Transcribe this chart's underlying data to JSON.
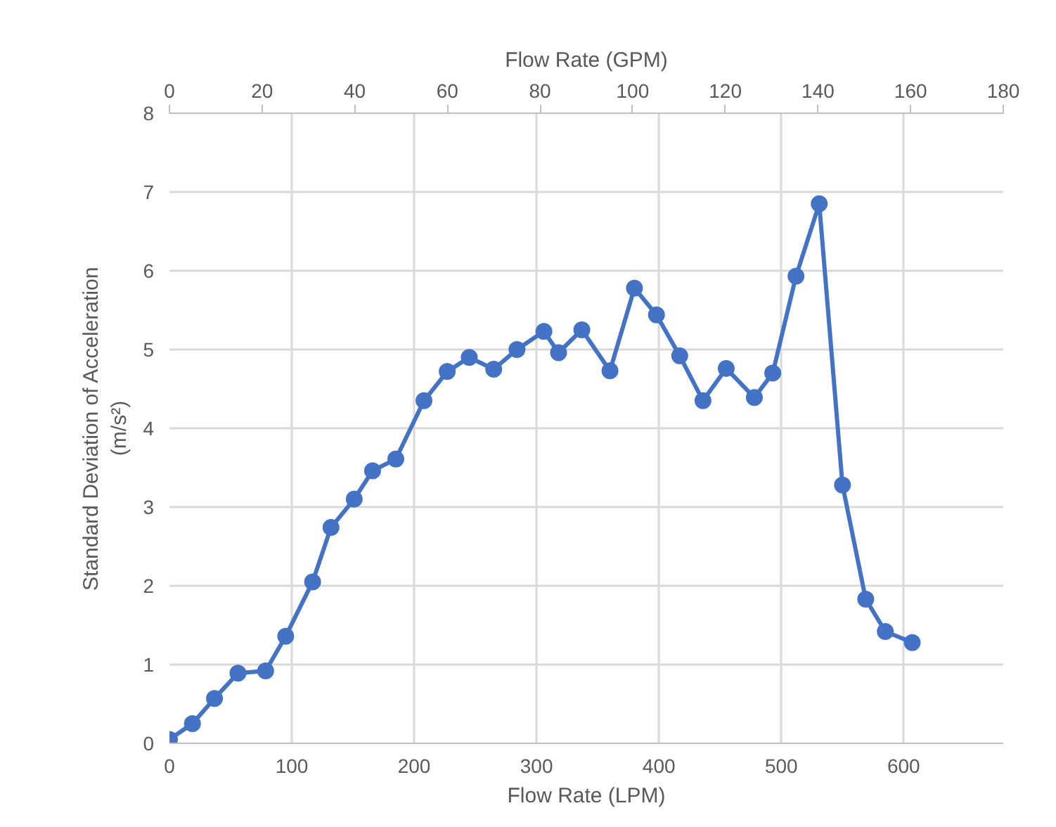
{
  "chart_data": {
    "type": "line",
    "xlabel": "Flow Rate (LPM)",
    "x2label": "Flow Rate (GPM)",
    "ylabel": "Standard Deviation of Acceleration\n(m/s²)",
    "x": [
      0,
      18.8,
      36.8,
      56,
      78.6,
      95,
      117,
      132,
      151,
      166,
      185,
      208,
      227,
      245,
      265,
      284,
      306,
      318,
      337,
      360,
      380,
      398,
      417,
      436,
      455,
      478,
      493,
      512,
      531,
      550,
      569,
      585,
      607
    ],
    "series": [
      {
        "color": "#4472c4",
        "values": [
          0.05,
          0.25,
          0.57,
          0.89,
          0.92,
          1.36,
          2.05,
          2.74,
          3.1,
          3.46,
          3.61,
          4.35,
          4.72,
          4.9,
          4.75,
          5.0,
          5.23,
          4.96,
          5.25,
          4.73,
          5.78,
          5.44,
          4.92,
          4.35,
          4.76,
          4.39,
          4.7,
          5.93,
          6.85,
          3.28,
          1.83,
          1.42,
          1.28
        ]
      }
    ],
    "xlim": [
      0,
      681.4
    ],
    "xticks": [
      0,
      100,
      200,
      300,
      400,
      500,
      600
    ],
    "x2lim": [
      0,
      180
    ],
    "x2ticks": [
      0,
      20,
      40,
      60,
      80,
      100,
      120,
      140,
      160,
      180
    ],
    "ylim": [
      0,
      8
    ],
    "yticks": [
      0,
      1,
      2,
      3,
      4,
      5,
      6,
      7,
      8
    ],
    "grid": true,
    "marker": "circle",
    "line_style": "solid"
  }
}
